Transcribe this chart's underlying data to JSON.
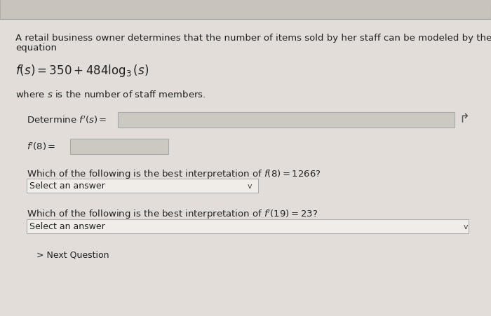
{
  "page_bg": "#e2ddd8",
  "top_bar_color": "#c8c3bc",
  "top_bar_border": "#b0aba4",
  "text_color": "#222222",
  "input_box_color": "#ccc8c2",
  "input_box_border": "#aaaaaa",
  "dropdown_bg": "#f0ece7",
  "dropdown_border": "#aaaaaa",
  "intro_line1": "A retail business owner determines that the number of items sold by her staff can be modeled by the",
  "intro_line2": "equation",
  "where_text": "where $s$ is the number of staff members.",
  "determine_label": "Determine $f'(s) =$",
  "fprime_label": "$f'(8) =$",
  "interp1_label": "Which of the following is the best interpretation of $f(8) = 1266$?",
  "interp2_label": "Which of the following is the best interpretation of $f'(19) = 23$?",
  "select_text": "Select an answer",
  "next_text": "> Next Question",
  "font_size_body": 9.5,
  "font_size_equation": 12,
  "font_size_small": 9.0
}
